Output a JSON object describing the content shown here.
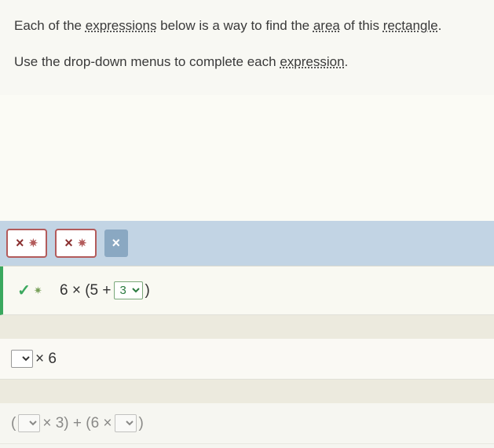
{
  "instructions": {
    "line1_prefix": "Each of the ",
    "term_expressions": "expressions",
    "line1_mid": " below is a way to find the ",
    "term_area": "area",
    "line1_mid2": " of this ",
    "term_rectangle": "rectangle",
    "line1_suffix": ".",
    "line2_prefix": "Use the drop-down menus to complete each ",
    "term_expression": "expression",
    "line2_suffix": "."
  },
  "tabs": {
    "tab1_symbol": "×",
    "tab1_sun": "✷",
    "tab2_symbol": "×",
    "tab2_sun": "✷",
    "tab3_symbol": "×"
  },
  "row1": {
    "check": "✓",
    "sun": "✷",
    "expr_prefix": "6 × (5 + ",
    "dropdown_value": "3",
    "expr_suffix": ")"
  },
  "row2": {
    "dropdown_value": "",
    "expr_rest": " × 6"
  },
  "row3": {
    "paren": "(",
    "dropdown1_value": "",
    "expr_mid": " × 3) + (6 × ",
    "dropdown2_value": "",
    "expr_end": ")"
  },
  "colors": {
    "tab_strip_bg": "#c2d4e4",
    "tab_border": "#b35b5b",
    "correct_green": "#3aa85e"
  }
}
